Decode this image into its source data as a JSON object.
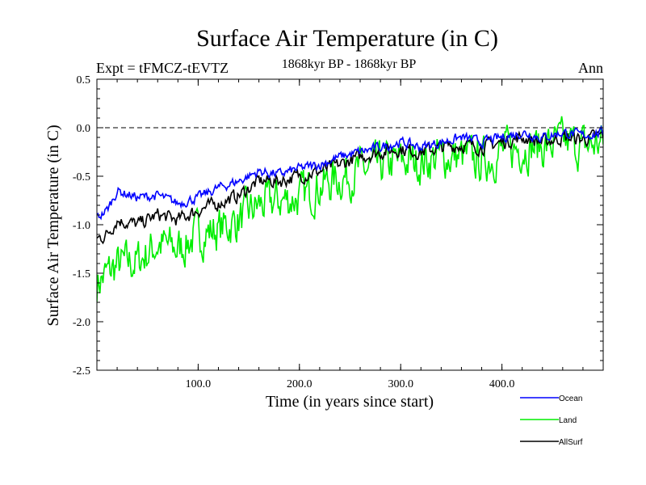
{
  "chart_data": {
    "type": "line",
    "title": "Surface Air Temperature (in C)",
    "subtitle_left": "Expt = tFMCZ-tEVTZ",
    "subtitle_center": "1868kyr BP - 1868kyr BP",
    "subtitle_right": "Ann",
    "xlabel": "Time (in years since start)",
    "ylabel": "Surface Air Temperature (in C)",
    "xlim": [
      0,
      500
    ],
    "ylim": [
      -2.5,
      0.5
    ],
    "xticks": [
      100,
      200,
      300,
      400
    ],
    "xtick_labels": [
      "100.0",
      "200.0",
      "300.0",
      "400.0"
    ],
    "yticks": [
      -2.5,
      -2.0,
      -1.5,
      -1.0,
      -0.5,
      0.0,
      0.5
    ],
    "ytick_labels": [
      "-2.5",
      "-2.0",
      "-1.5",
      "-1.0",
      "-0.5",
      "0.0",
      "0.5"
    ],
    "reference_line": 0.0,
    "noise_seed": 7,
    "series": [
      {
        "name": "Ocean",
        "color": "#0000ff",
        "noise_amp": 0.05,
        "key_points": [
          [
            0,
            -0.93
          ],
          [
            10,
            -0.85
          ],
          [
            20,
            -0.65
          ],
          [
            40,
            -0.72
          ],
          [
            60,
            -0.7
          ],
          [
            80,
            -0.78
          ],
          [
            100,
            -0.72
          ],
          [
            120,
            -0.62
          ],
          [
            140,
            -0.55
          ],
          [
            160,
            -0.45
          ],
          [
            180,
            -0.48
          ],
          [
            200,
            -0.42
          ],
          [
            220,
            -0.38
          ],
          [
            240,
            -0.3
          ],
          [
            260,
            -0.25
          ],
          [
            280,
            -0.2
          ],
          [
            300,
            -0.15
          ],
          [
            320,
            -0.2
          ],
          [
            340,
            -0.15
          ],
          [
            360,
            -0.1
          ],
          [
            380,
            -0.15
          ],
          [
            400,
            -0.1
          ],
          [
            420,
            -0.05
          ],
          [
            440,
            -0.1
          ],
          [
            460,
            -0.05
          ],
          [
            480,
            -0.08
          ],
          [
            500,
            -0.05
          ]
        ]
      },
      {
        "name": "Land",
        "color": "#00ee00",
        "noise_amp": 0.22,
        "key_points": [
          [
            0,
            -1.6
          ],
          [
            20,
            -1.42
          ],
          [
            40,
            -1.38
          ],
          [
            60,
            -1.2
          ],
          [
            80,
            -1.25
          ],
          [
            100,
            -1.1
          ],
          [
            120,
            -1.05
          ],
          [
            140,
            -0.95
          ],
          [
            160,
            -0.8
          ],
          [
            180,
            -0.75
          ],
          [
            200,
            -0.72
          ],
          [
            220,
            -0.6
          ],
          [
            240,
            -0.52
          ],
          [
            260,
            -0.45
          ],
          [
            280,
            -0.4
          ],
          [
            300,
            -0.35
          ],
          [
            320,
            -0.35
          ],
          [
            340,
            -0.3
          ],
          [
            360,
            -0.3
          ],
          [
            380,
            -0.35
          ],
          [
            400,
            -0.25
          ],
          [
            420,
            -0.2
          ],
          [
            440,
            -0.2
          ],
          [
            460,
            -0.15
          ],
          [
            480,
            -0.2
          ],
          [
            500,
            -0.15
          ]
        ]
      },
      {
        "name": "AllSurf",
        "color": "#000000",
        "noise_amp": 0.07,
        "key_points": [
          [
            0,
            -1.15
          ],
          [
            10,
            -1.1
          ],
          [
            20,
            -0.95
          ],
          [
            40,
            -1.0
          ],
          [
            60,
            -0.9
          ],
          [
            80,
            -0.95
          ],
          [
            100,
            -0.85
          ],
          [
            120,
            -0.78
          ],
          [
            140,
            -0.7
          ],
          [
            160,
            -0.55
          ],
          [
            180,
            -0.55
          ],
          [
            200,
            -0.5
          ],
          [
            220,
            -0.45
          ],
          [
            240,
            -0.38
          ],
          [
            260,
            -0.3
          ],
          [
            280,
            -0.25
          ],
          [
            300,
            -0.22
          ],
          [
            320,
            -0.25
          ],
          [
            340,
            -0.2
          ],
          [
            360,
            -0.18
          ],
          [
            380,
            -0.2
          ],
          [
            400,
            -0.15
          ],
          [
            420,
            -0.1
          ],
          [
            440,
            -0.15
          ],
          [
            460,
            -0.1
          ],
          [
            480,
            -0.12
          ],
          [
            500,
            -0.08
          ]
        ]
      }
    ],
    "legend_position": "bottom-right"
  }
}
